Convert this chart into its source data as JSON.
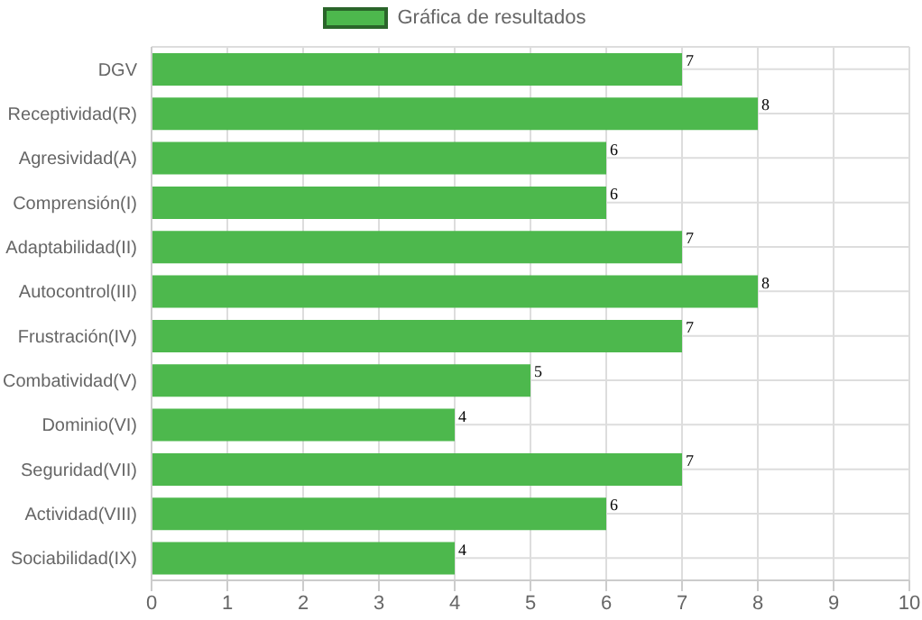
{
  "chart_data": {
    "type": "bar",
    "orientation": "horizontal",
    "categories": [
      "DGV",
      "Receptividad(R)",
      "Agresividad(A)",
      "Comprensión(I)",
      "Adaptabilidad(II)",
      "Autocontrol(III)",
      "Frustración(IV)",
      "Combatividad(V)",
      "Dominio(VI)",
      "Seguridad(VII)",
      "Actividad(VIII)",
      "Sociabilidad(IX)"
    ],
    "series": [
      {
        "name": "Gráfica de resultados",
        "color": "#4db84d",
        "values": [
          7,
          8,
          6,
          6,
          7,
          8,
          7,
          5,
          4,
          7,
          6,
          4
        ]
      }
    ],
    "xlim": [
      0,
      10
    ],
    "xticks": [
      0,
      1,
      2,
      3,
      4,
      5,
      6,
      7,
      8,
      9,
      10
    ],
    "grid": true,
    "legend": "top",
    "data_labels": true
  }
}
